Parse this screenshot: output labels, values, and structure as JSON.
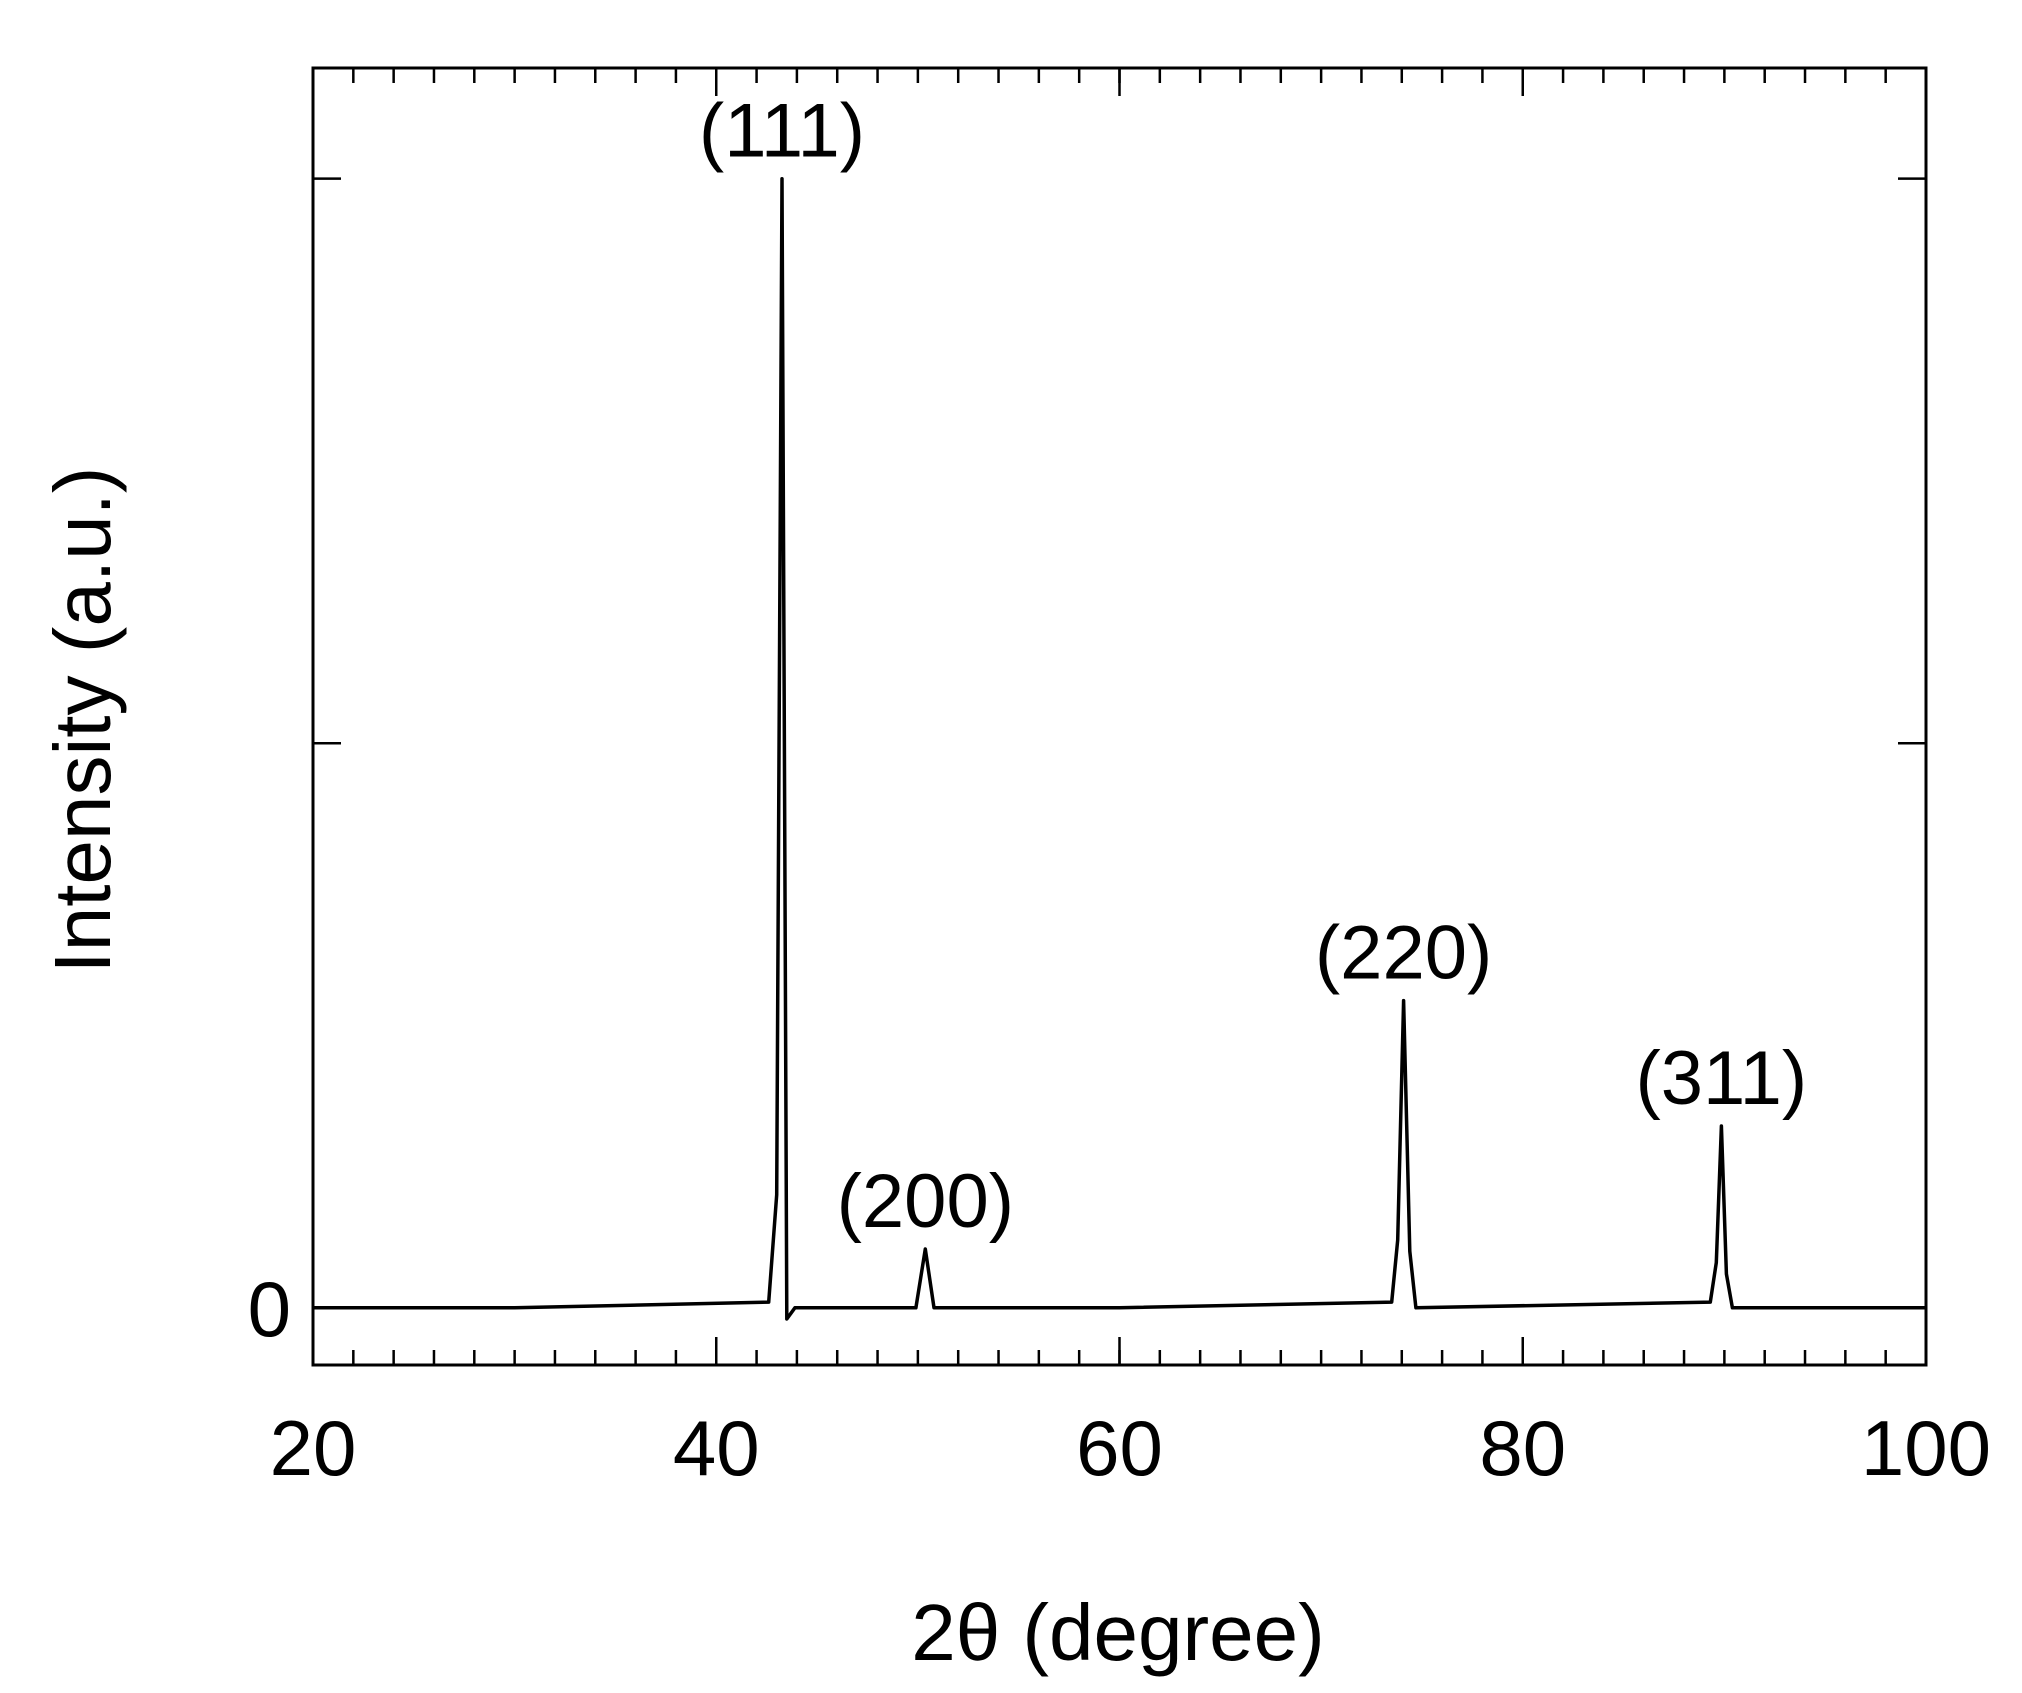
{
  "chart_data": {
    "type": "line",
    "xlabel": "2θ (degree)",
    "ylabel": "Intensity (a.u.)",
    "x": [
      20,
      30,
      42.6,
      43.0,
      43.26,
      43.5,
      43.9,
      49.9,
      50.37,
      50.8,
      60,
      73.5,
      73.8,
      74.09,
      74.4,
      74.7,
      89.3,
      89.6,
      89.85,
      90.1,
      90.4,
      100
    ],
    "series": [
      {
        "color": "#000000",
        "values": [
          0,
          0,
          0.5,
          10,
          100,
          -1,
          0,
          0,
          5.2,
          0,
          0,
          0.5,
          6,
          27.2,
          5,
          0,
          0.5,
          4,
          16.1,
          3,
          0,
          0
        ]
      }
    ],
    "annotations": [
      "(111)",
      "(200)",
      "(220)",
      "(311)"
    ],
    "xlim": [
      20,
      100
    ],
    "xticks": [
      20,
      40,
      60,
      80,
      100
    ],
    "x_minor_step": 2,
    "ylim": [
      -5.07,
      109.8
    ],
    "yticks": [
      0
    ],
    "y_unlabeled_ticks": [
      50,
      100
    ],
    "mirror_ticks": true
  }
}
